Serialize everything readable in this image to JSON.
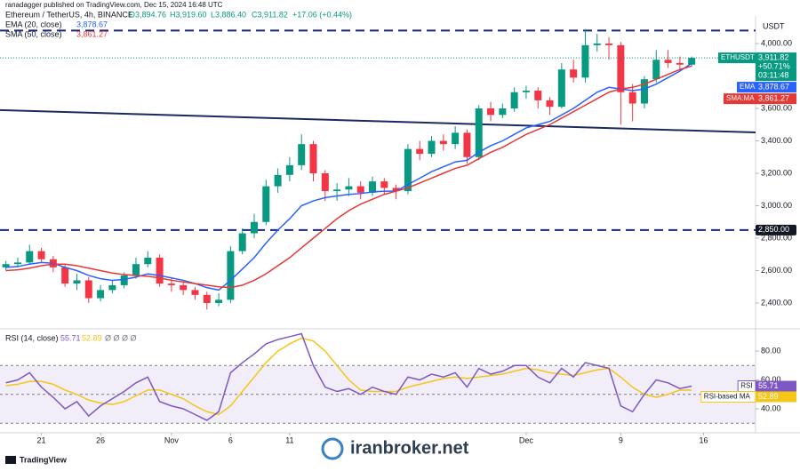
{
  "header": {
    "published": "ranadagger published on TradingView.com, Dec 15, 2024 16:48 UTC",
    "footer": "TradingView",
    "watermark": "iranbroker.net"
  },
  "chart_data": [
    {
      "type": "candlestick",
      "title": "Ethereum / TetherUS, 4h, BINANCE",
      "ohlc_text": [
        "O3,894.76",
        "H3,919.60",
        "L3,886.40",
        "C3,911.82",
        "+17.06 (+0.44%)"
      ],
      "axis_unit": "USDT",
      "up_color": "#089981",
      "down_color": "#f23645",
      "xlim": [
        -0.5,
        63.4
      ],
      "xticks": [
        {
          "value": 3,
          "label": "21"
        },
        {
          "value": 8,
          "label": "26"
        },
        {
          "value": 14,
          "label": "Nov"
        },
        {
          "value": 19,
          "label": "6"
        },
        {
          "value": 24,
          "label": "11"
        },
        {
          "value": 44,
          "label": "Dec"
        },
        {
          "value": 52,
          "label": "9"
        },
        {
          "value": 59,
          "label": "16"
        }
      ],
      "ylim": [
        2252,
        4159
      ],
      "yticks": [
        {
          "value": 2400,
          "label": "2,400.00"
        },
        {
          "value": 2600,
          "label": "2,600.00"
        },
        {
          "value": 2800,
          "label": "2,800.00"
        },
        {
          "value": 3000,
          "label": "3,000.00"
        },
        {
          "value": 3200,
          "label": "3,200.00"
        },
        {
          "value": 3400,
          "label": "3,400.00"
        },
        {
          "value": 3600,
          "label": "3,600.00"
        },
        {
          "value": 3800,
          "label": "3,800.00"
        },
        {
          "value": 4000,
          "label": "4,000.00"
        }
      ],
      "open": [
        2620,
        2640,
        2650,
        2720,
        2670,
        2620,
        2520,
        2540,
        2430,
        2480,
        2510,
        2570,
        2640,
        2680,
        2520,
        2510,
        2480,
        2450,
        2400,
        2420,
        2720,
        2830,
        2900,
        3120,
        3190,
        3250,
        3380,
        3200,
        3090,
        3100,
        3120,
        3080,
        3150,
        3110,
        3090,
        3350,
        3320,
        3400,
        3380,
        3450,
        3300,
        3600,
        3560,
        3600,
        3700,
        3710,
        3650,
        3610,
        3840,
        3790,
        3990,
        4000,
        3990,
        3700,
        3630,
        3780,
        3900,
        3880,
        3870
      ],
      "high": [
        2660,
        2680,
        2760,
        2740,
        2690,
        2640,
        2580,
        2560,
        2510,
        2540,
        2590,
        2680,
        2720,
        2700,
        2560,
        2530,
        2500,
        2470,
        2460,
        2750,
        2860,
        2950,
        3160,
        3230,
        3300,
        3440,
        3400,
        3220,
        3140,
        3170,
        3150,
        3180,
        3170,
        3130,
        3380,
        3400,
        3430,
        3440,
        3490,
        3470,
        3620,
        3640,
        3630,
        3730,
        3740,
        3730,
        3670,
        3880,
        3900,
        4090,
        4060,
        4040,
        4010,
        3750,
        3800,
        3960,
        3960,
        3920,
        3920
      ],
      "low": [
        2600,
        2620,
        2640,
        2650,
        2590,
        2500,
        2480,
        2400,
        2410,
        2460,
        2490,
        2550,
        2620,
        2500,
        2470,
        2450,
        2420,
        2360,
        2380,
        2400,
        2700,
        2800,
        2880,
        3080,
        3150,
        3220,
        3150,
        3030,
        3030,
        3060,
        3040,
        3060,
        3070,
        3040,
        3070,
        3280,
        3300,
        3340,
        3350,
        3260,
        3280,
        3520,
        3540,
        3580,
        3660,
        3600,
        3560,
        3600,
        3760,
        3760,
        3950,
        3900,
        3500,
        3520,
        3600,
        3760,
        3850,
        3840,
        3860
      ],
      "close": [
        2640,
        2650,
        2720,
        2670,
        2620,
        2520,
        2540,
        2430,
        2480,
        2510,
        2570,
        2640,
        2680,
        2520,
        2510,
        2480,
        2450,
        2400,
        2420,
        2720,
        2830,
        2900,
        3120,
        3190,
        3250,
        3380,
        3200,
        3090,
        3100,
        3120,
        3080,
        3150,
        3110,
        3090,
        3350,
        3320,
        3400,
        3380,
        3450,
        3300,
        3600,
        3560,
        3600,
        3700,
        3710,
        3650,
        3610,
        3840,
        3790,
        3990,
        4000,
        3990,
        3700,
        3630,
        3780,
        3900,
        3880,
        3870,
        3911.82
      ],
      "series": [
        {
          "name": "EMA (20, close)",
          "value_label": "3,878.67",
          "tag": "EMA",
          "color": "#2962ff",
          "values": [
            2620,
            2625,
            2640,
            2650,
            2645,
            2620,
            2600,
            2570,
            2550,
            2540,
            2545,
            2560,
            2580,
            2570,
            2555,
            2540,
            2520,
            2495,
            2480,
            2540,
            2610,
            2680,
            2770,
            2850,
            2920,
            3000,
            3030,
            3050,
            3060,
            3070,
            3075,
            3085,
            3090,
            3090,
            3130,
            3170,
            3210,
            3240,
            3270,
            3280,
            3330,
            3370,
            3400,
            3440,
            3480,
            3500,
            3520,
            3560,
            3600,
            3650,
            3700,
            3730,
            3720,
            3710,
            3720,
            3750,
            3790,
            3830,
            3878.67
          ]
        },
        {
          "name": "SMA (50, close)",
          "value_label": "3,861.27",
          "tag": "SMA:MA",
          "color": "#e53935",
          "values": [
            2600,
            2605,
            2615,
            2630,
            2640,
            2640,
            2630,
            2615,
            2600,
            2585,
            2575,
            2570,
            2565,
            2555,
            2540,
            2530,
            2520,
            2510,
            2500,
            2495,
            2510,
            2540,
            2580,
            2630,
            2680,
            2740,
            2800,
            2860,
            2920,
            2970,
            3010,
            3040,
            3070,
            3090,
            3110,
            3140,
            3170,
            3200,
            3230,
            3250,
            3290,
            3330,
            3360,
            3400,
            3440,
            3470,
            3500,
            3540,
            3580,
            3620,
            3660,
            3700,
            3720,
            3730,
            3750,
            3780,
            3810,
            3840,
            3861.27
          ]
        }
      ],
      "last_price": {
        "value": 3911.82,
        "label": "3,911.82",
        "symbol": "ETHUSDT",
        "change": "+50.71%",
        "countdown": "03:11:48"
      },
      "levels": [
        {
          "value": 4080
        },
        {
          "value": 2850,
          "label": "2,850.00"
        }
      ],
      "trendline": {
        "x": [
          -0.5,
          63.4
        ],
        "y": [
          3590,
          3452
        ]
      }
    },
    {
      "type": "line",
      "title": "RSI (14, close)",
      "extra": "Ø Ø Ø Ø",
      "xlim": [
        -0.5,
        63.4
      ],
      "ylim": [
        24.6,
        94.2
      ],
      "yticks": [
        {
          "value": 40,
          "label": "40.00"
        },
        {
          "value": 60,
          "label": "60.00"
        },
        {
          "value": 80,
          "label": "80.00"
        }
      ],
      "bands": [
        30,
        50,
        70
      ],
      "series": [
        {
          "name": "RSI",
          "value_label": "55.71",
          "color": "#7e57c2",
          "values": [
            58,
            60,
            65,
            55,
            48,
            40,
            45,
            35,
            42,
            47,
            52,
            58,
            62,
            45,
            42,
            40,
            36,
            32,
            38,
            65,
            72,
            78,
            85,
            88,
            90,
            92,
            70,
            55,
            52,
            54,
            50,
            55,
            52,
            50,
            62,
            60,
            64,
            62,
            65,
            55,
            68,
            64,
            66,
            70,
            70,
            62,
            58,
            68,
            62,
            72,
            70,
            68,
            42,
            38,
            50,
            60,
            58,
            54,
            55.71
          ]
        },
        {
          "name": "RSI-based MA",
          "value_label": "52.89",
          "color": "#f5c518",
          "values": [
            56,
            57,
            59,
            59,
            57,
            53,
            50,
            46,
            44,
            43,
            45,
            49,
            53,
            53,
            50,
            47,
            42,
            38,
            36,
            42,
            52,
            62,
            72,
            80,
            85,
            89,
            87,
            80,
            70,
            60,
            53,
            52,
            52,
            52,
            55,
            57,
            59,
            61,
            62,
            61,
            62,
            63,
            64,
            66,
            68,
            67,
            65,
            64,
            63,
            65,
            67,
            68,
            62,
            55,
            50,
            48,
            50,
            53,
            52.89
          ]
        }
      ]
    }
  ]
}
